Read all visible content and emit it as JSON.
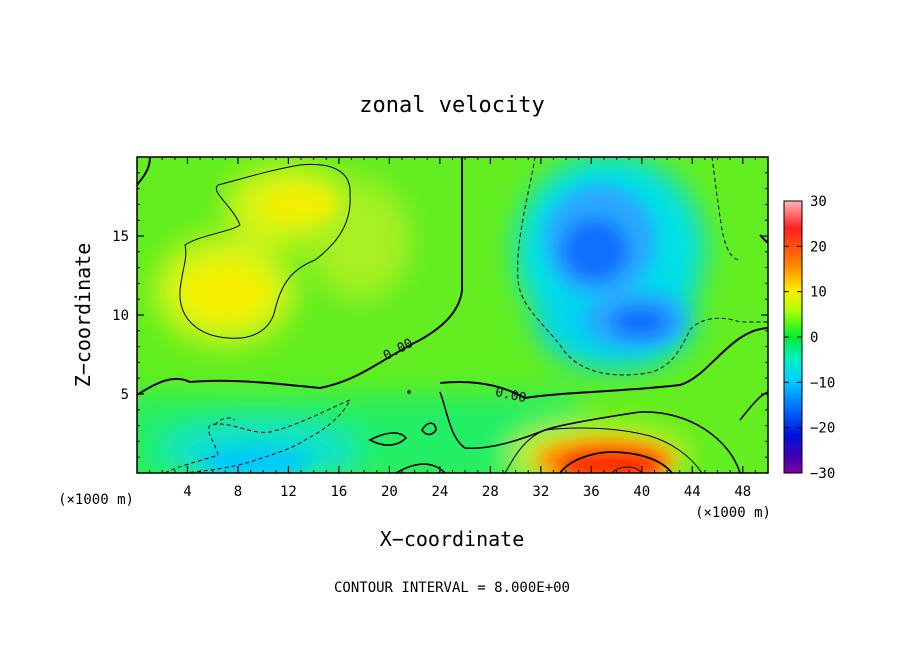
{
  "chart_data": {
    "type": "heatmap",
    "title": "zonal velocity",
    "xlabel": "X−coordinate",
    "ylabel": "Z−coordinate",
    "x_unit_left": "(×1000 m)",
    "x_unit_right": "(×1000 m)",
    "xlim": [
      0,
      50
    ],
    "ylim": [
      0,
      20
    ],
    "xticks": [
      4,
      8,
      12,
      16,
      20,
      24,
      28,
      32,
      36,
      40,
      44,
      48
    ],
    "yticks": [
      5,
      10,
      15
    ],
    "colorbar": {
      "range": [
        -30,
        30
      ],
      "ticks": [
        30,
        20,
        10,
        0,
        -10,
        -20,
        -30
      ],
      "tick_labels": [
        "30",
        "20",
        "10",
        "0",
        "−10",
        "−20",
        "−30"
      ],
      "colors": [
        "#ffb0b0",
        "#ff2020",
        "#ff7a00",
        "#ffd000",
        "#d8ff00",
        "#60ff00",
        "#00f060",
        "#00f0c0",
        "#00d8ff",
        "#0090ff",
        "#0040ff",
        "#0000e0",
        "#5000b0",
        "#8000a0"
      ]
    },
    "contour_labels": [
      "0.00",
      "0.00"
    ],
    "features": [
      {
        "label": "positive",
        "x": 8,
        "z": 11.5,
        "value": 10
      },
      {
        "label": "positive",
        "x": 13,
        "z": 17,
        "value": 10
      },
      {
        "label": "negative",
        "x": 38,
        "z": 14,
        "value": -14
      },
      {
        "label": "negative",
        "x": 40,
        "z": 9.5,
        "value": -14
      },
      {
        "label": "negative",
        "x": 10,
        "z": 1,
        "value": -10
      },
      {
        "label": "strong-positive",
        "x": 39,
        "z": 0.6,
        "value": 26
      }
    ]
  },
  "footer": {
    "contour_interval": "CONTOUR INTERVAL = 8.000E+00"
  }
}
